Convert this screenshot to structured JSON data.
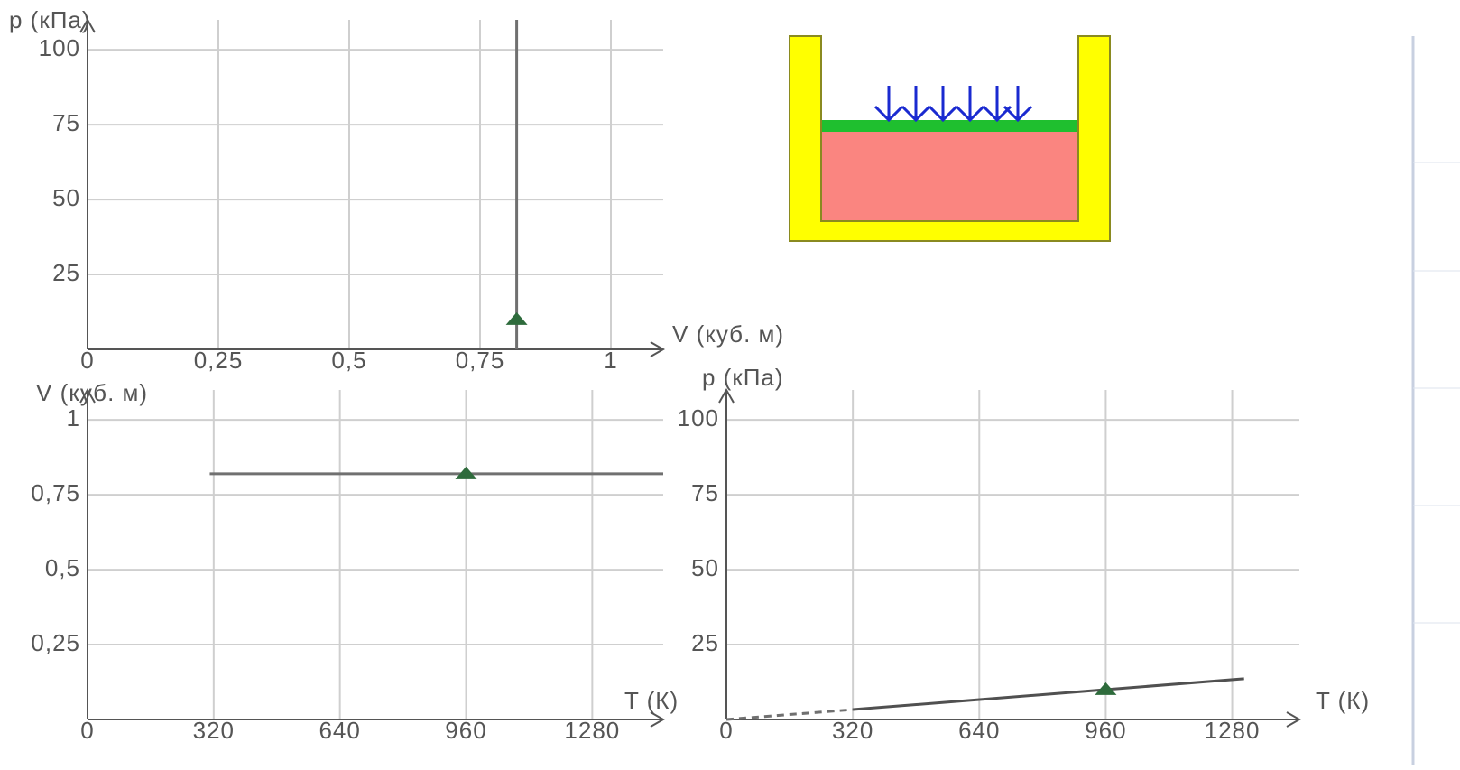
{
  "chart_data": [
    {
      "type": "line",
      "x_label": "V (куб. м)",
      "y_label": "p (кПа)",
      "xlim": [
        0,
        1.1
      ],
      "ylim": [
        0,
        110
      ],
      "xticks": [
        0,
        {
          "value": 0.25,
          "label": "0,25"
        },
        {
          "value": 0.5,
          "label": "0,5"
        },
        {
          "value": 0.75,
          "label": "0,75"
        },
        1
      ],
      "yticks": [
        25,
        50,
        75,
        100
      ],
      "grid": true,
      "series": [
        {
          "color": "#707070",
          "dash": false,
          "x": [
            0.82,
            0.82
          ],
          "values": [
            0,
            110
          ]
        }
      ],
      "points": {
        "color": "#2e6b3c",
        "x": [
          0.82
        ],
        "values": [
          10
        ]
      }
    },
    {
      "type": "line",
      "x_label": "T (К)",
      "y_label": "V (куб. м)",
      "xlim": [
        0,
        1460
      ],
      "ylim": [
        0,
        1.1
      ],
      "xticks": [
        0,
        320,
        640,
        960,
        1280
      ],
      "yticks": [
        {
          "value": 0.25,
          "label": "0,25"
        },
        {
          "value": 0.5,
          "label": "0,5"
        },
        {
          "value": 0.75,
          "label": "0,75"
        },
        1
      ],
      "grid": true,
      "series": [
        {
          "color": "#707070",
          "dash": false,
          "x": [
            310,
            1460
          ],
          "values": [
            0.82,
            0.82
          ]
        }
      ],
      "points": {
        "color": "#2e6b3c",
        "x": [
          960
        ],
        "values": [
          0.82
        ]
      }
    },
    {
      "type": "line",
      "x_label": "T (К)",
      "y_label": "p (кПа)",
      "xlim": [
        0,
        1450
      ],
      "ylim": [
        0,
        110
      ],
      "xticks": [
        0,
        320,
        640,
        960,
        1280
      ],
      "yticks": [
        25,
        50,
        75,
        100
      ],
      "grid": true,
      "series": [
        {
          "color": "#707070",
          "dash": true,
          "x": [
            0,
            320
          ],
          "values": [
            0,
            3.3
          ]
        },
        {
          "color": "#505050",
          "dash": false,
          "x": [
            320,
            1310
          ],
          "values": [
            3.3,
            13.6
          ]
        }
      ],
      "points": {
        "color": "#2e6b3c",
        "x": [
          960
        ],
        "values": [
          10
        ]
      }
    }
  ]
}
